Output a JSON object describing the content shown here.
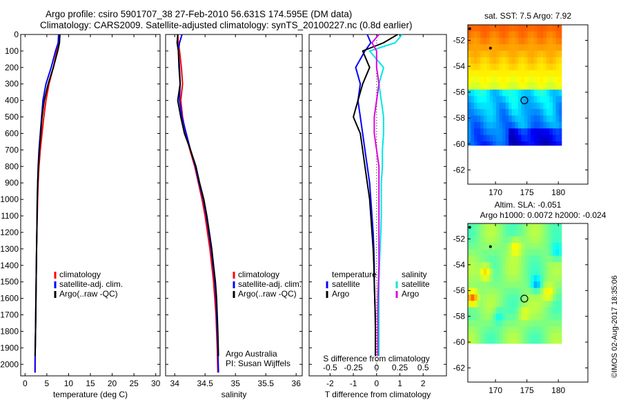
{
  "title": {
    "line1": "Argo profile: csiro 5901707_38 27-Feb-2010 56.631S 174.595E (DM data)",
    "line2": "Climatology: CARS2009. Satellite-adjusted climatology: synTS_20100227.nc (0.8d earlier)"
  },
  "credit": "©IMOS 02-Aug-2017 18:35:06",
  "colors": {
    "climatology": "#ff0000",
    "satellite": "#0000ff",
    "argo": "#000000",
    "salinity_satellite": "#00e5e5",
    "salinity_argo": "#e000e0"
  },
  "chart_data": [
    {
      "type": "line",
      "xlabel": "temperature (deg C)",
      "ylabel": "",
      "xlim": [
        -1,
        31
      ],
      "ylim": [
        2070,
        0
      ],
      "xticks": [
        0,
        5,
        10,
        15,
        20,
        25,
        30
      ],
      "yticks": [
        0,
        100,
        200,
        300,
        400,
        500,
        600,
        700,
        800,
        900,
        1000,
        1100,
        1200,
        1300,
        1400,
        1500,
        1600,
        1700,
        1800,
        1900,
        2000
      ],
      "legend": [
        "climatology",
        "satellite-adj. clim.",
        "Argo(..raw -QC)"
      ],
      "legend_position": "lower-center",
      "series": [
        {
          "name": "climatology",
          "color": "#ff0000",
          "x": [
            8.0,
            7.8,
            7.3,
            6.5,
            5.5,
            4.8,
            4.3,
            3.9,
            3.5,
            3.2,
            3.0,
            2.9,
            2.8,
            2.7,
            2.65,
            2.6,
            2.55,
            2.5,
            2.45,
            2.4,
            2.35,
            2.3,
            2.3
          ],
          "y": [
            0,
            50,
            100,
            200,
            300,
            400,
            500,
            600,
            700,
            800,
            900,
            1000,
            1100,
            1200,
            1300,
            1400,
            1500,
            1600,
            1700,
            1800,
            1900,
            2000,
            2050
          ]
        },
        {
          "name": "satellite-adj. clim.",
          "color": "#0000ff",
          "x": [
            7.7,
            7.6,
            7.0,
            6.0,
            4.8,
            4.1,
            3.8,
            3.5,
            3.2,
            3.0,
            2.9,
            2.8,
            2.75,
            2.7,
            2.65,
            2.6,
            2.55,
            2.5,
            2.45,
            2.4,
            2.35,
            2.3,
            2.3
          ],
          "y": [
            0,
            50,
            100,
            200,
            300,
            400,
            500,
            600,
            700,
            800,
            900,
            1000,
            1100,
            1200,
            1300,
            1400,
            1500,
            1600,
            1700,
            1800,
            1900,
            2000,
            2050
          ]
        },
        {
          "name": "Argo(..raw -QC)",
          "color": "#000000",
          "x": [
            8.0,
            7.9,
            7.5,
            6.5,
            5.3,
            4.4,
            3.9,
            3.6,
            3.3,
            3.05,
            2.9,
            2.8,
            2.75,
            2.7,
            2.65,
            2.6,
            2.55,
            2.5,
            2.45,
            2.4,
            2.35,
            2.3
          ],
          "y": [
            0,
            50,
            100,
            200,
            300,
            400,
            500,
            600,
            700,
            800,
            900,
            1000,
            1100,
            1200,
            1300,
            1400,
            1500,
            1600,
            1700,
            1800,
            1900,
            1950
          ]
        }
      ]
    },
    {
      "type": "line",
      "xlabel": "salinity",
      "ylabel": "",
      "xlim": [
        33.85,
        36.1
      ],
      "ylim": [
        2070,
        0
      ],
      "xticks": [
        34,
        34.5,
        35,
        35.5,
        36
      ],
      "legend": [
        "climatology",
        "satellite-adj. clim.",
        "Argo(..raw -QC)"
      ],
      "legend_position": "lower-right",
      "annotation": [
        "Argo Australia",
        "PI: Susan Wijffels"
      ],
      "series": [
        {
          "name": "climatology",
          "color": "#ff0000",
          "x": [
            34.05,
            34.06,
            34.08,
            34.11,
            34.13,
            34.1,
            34.13,
            34.18,
            34.25,
            34.33,
            34.39,
            34.45,
            34.5,
            34.54,
            34.58,
            34.61,
            34.64,
            34.66,
            34.68,
            34.69,
            34.7,
            34.71
          ],
          "y": [
            0,
            50,
            100,
            200,
            300,
            400,
            500,
            600,
            700,
            800,
            900,
            1000,
            1100,
            1200,
            1300,
            1400,
            1500,
            1600,
            1700,
            1800,
            1900,
            2050
          ]
        },
        {
          "name": "satellite-adj. clim.",
          "color": "#0000ff",
          "x": [
            34.12,
            34.08,
            34.06,
            34.08,
            34.09,
            34.08,
            34.12,
            34.19,
            34.26,
            34.34,
            34.4,
            34.47,
            34.52,
            34.56,
            34.6,
            34.63,
            34.66,
            34.68,
            34.69,
            34.7,
            34.71,
            34.72
          ],
          "y": [
            0,
            50,
            100,
            200,
            300,
            400,
            500,
            600,
            700,
            800,
            900,
            1000,
            1100,
            1200,
            1300,
            1400,
            1500,
            1600,
            1700,
            1800,
            1900,
            2050
          ]
        },
        {
          "name": "Argo(..raw -QC)",
          "color": "#000000",
          "x": [
            34.05,
            34.04,
            34.06,
            34.07,
            34.09,
            34.05,
            34.1,
            34.16,
            34.26,
            34.35,
            34.41,
            34.48,
            34.53,
            34.57,
            34.61,
            34.64,
            34.67,
            34.69,
            34.7,
            34.71,
            34.72
          ],
          "y": [
            0,
            50,
            100,
            200,
            300,
            400,
            500,
            600,
            700,
            800,
            900,
            1000,
            1100,
            1200,
            1300,
            1400,
            1500,
            1600,
            1700,
            1800,
            1950
          ]
        }
      ]
    },
    {
      "type": "line",
      "xlabel": "T difference from climatology",
      "xlabel_top": "S difference from climatology",
      "ylabel": "",
      "xlim": [
        -2.9,
        3.0
      ],
      "ylim": [
        2070,
        0
      ],
      "xticks": [
        -2,
        -1,
        0,
        1,
        2
      ],
      "xticks_top_labels": [
        "-0.5",
        "-0.25",
        "0",
        "0.25",
        "0.5"
      ],
      "xticks_top_positions": [
        -2,
        -1,
        0,
        1,
        2
      ],
      "zero_line": "dotted",
      "legend_left": {
        "title": "temperature",
        "entries": [
          "satellite",
          "Argo"
        ]
      },
      "legend_right": {
        "title": "salinity",
        "entries": [
          "satellite",
          "Argo"
        ]
      },
      "series": [
        {
          "name": "temperature satellite",
          "color": "#0000ff",
          "x": [
            -0.4,
            -0.25,
            -0.5,
            -0.9,
            -0.7,
            -0.8,
            -0.7,
            -0.6,
            -0.5,
            -0.4,
            -0.3,
            -0.25,
            -0.2,
            -0.15,
            -0.12,
            -0.1,
            -0.1,
            -0.08,
            -0.06,
            -0.05,
            -0.05
          ],
          "y": [
            0,
            50,
            100,
            200,
            300,
            400,
            500,
            600,
            700,
            800,
            900,
            1000,
            1100,
            1200,
            1300,
            1400,
            1500,
            1600,
            1700,
            1800,
            1950
          ]
        },
        {
          "name": "temperature Argo",
          "color": "#000000",
          "x": [
            0.9,
            0.3,
            -0.6,
            -0.3,
            -0.6,
            -0.8,
            -1.0,
            -0.7,
            -0.6,
            -0.5,
            -0.4,
            -0.3,
            -0.25,
            -0.2,
            -0.15,
            -0.12,
            -0.1,
            -0.08,
            -0.06,
            -0.05,
            -0.05
          ],
          "y": [
            0,
            50,
            100,
            200,
            300,
            400,
            500,
            600,
            700,
            800,
            900,
            1000,
            1100,
            1200,
            1300,
            1400,
            1500,
            1600,
            1700,
            1800,
            1950
          ]
        },
        {
          "name": "salinity satellite",
          "color": "#00e5e5",
          "x": [
            1.1,
            0.8,
            -0.3,
            0.3,
            0.1,
            0.2,
            0.3,
            0.3,
            0.25,
            0.25,
            0.2,
            0.2,
            0.2,
            0.18,
            0.15,
            0.12,
            0.1,
            0.1,
            0.1,
            0.1,
            0.1
          ],
          "y": [
            0,
            50,
            100,
            200,
            300,
            400,
            500,
            600,
            700,
            800,
            900,
            1000,
            1100,
            1200,
            1300,
            1400,
            1500,
            1600,
            1700,
            1800,
            1950
          ]
        },
        {
          "name": "salinity Argo",
          "color": "#e000e0",
          "x": [
            0.1,
            -0.2,
            0.0,
            0.0,
            0.1,
            0.0,
            -0.1,
            -0.1,
            0.0,
            0.1,
            0.1,
            0.1,
            0.1,
            0.1,
            0.1,
            0.1,
            0.08,
            0.06,
            0.05,
            0.05,
            0.05
          ],
          "y": [
            0,
            50,
            100,
            200,
            300,
            400,
            500,
            600,
            700,
            800,
            900,
            1000,
            1100,
            1200,
            1300,
            1400,
            1500,
            1600,
            1700,
            1800,
            1950
          ]
        }
      ]
    },
    {
      "type": "heatmap",
      "title": "sat. SST: 7.5 Argo: 7.92",
      "xlim": [
        165.6,
        184.7
      ],
      "ylim": [
        -63.1,
        -50.8
      ],
      "xticks": [
        170,
        175,
        180
      ],
      "yticks": [
        -52,
        -54,
        -56,
        -58,
        -60,
        -62
      ],
      "data_extent": {
        "x": [
          165.6,
          180.5
        ],
        "y": [
          -60.1,
          -50.8
        ]
      },
      "argo_position": {
        "lon": 174.595,
        "lat": -56.631
      },
      "markers": [
        {
          "lon": 165.9,
          "lat": -51.1
        },
        {
          "lon": 169.2,
          "lat": -52.6
        }
      ],
      "colormap": "jet"
    },
    {
      "type": "heatmap",
      "title": "Altim. SLA: -0.051",
      "subtitle": "Argo h1000: 0.0072 h2000: -0.024",
      "xlim": [
        165.6,
        184.7
      ],
      "ylim": [
        -63.1,
        -50.8
      ],
      "xticks": [
        170,
        175,
        180
      ],
      "yticks": [
        -52,
        -54,
        -56,
        -58,
        -60,
        -62
      ],
      "data_extent": {
        "x": [
          165.6,
          180.5
        ],
        "y": [
          -60.1,
          -50.8
        ]
      },
      "argo_position": {
        "lon": 174.595,
        "lat": -56.631
      },
      "markers": [
        {
          "lon": 165.9,
          "lat": -51.1
        },
        {
          "lon": 169.2,
          "lat": -52.6
        }
      ],
      "colormap": "jet"
    }
  ]
}
